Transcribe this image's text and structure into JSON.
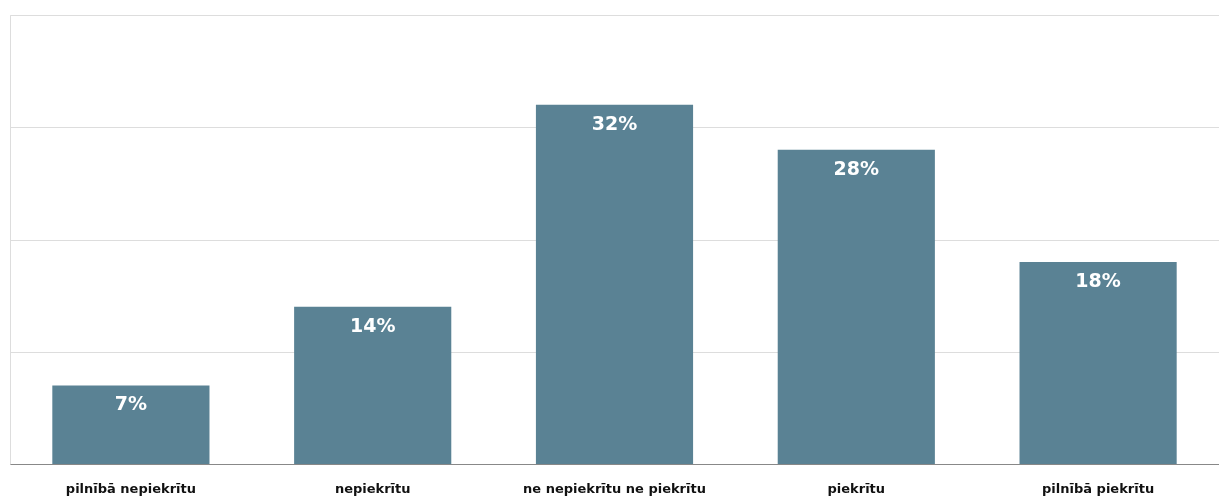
{
  "chart_data": {
    "type": "bar",
    "categories": [
      "pilnībā nepiekrītu",
      "nepiekrītu",
      "ne nepiekrītu ne piekrītu",
      "piekrītu",
      "pilnībā piekrītu"
    ],
    "values": [
      7,
      14,
      32,
      28,
      18
    ],
    "value_labels": [
      "7%",
      "14%",
      "32%",
      "28%",
      "18%"
    ],
    "color": "#5a8294",
    "ylim": [
      0,
      40
    ],
    "yticks": [
      {
        "value": 0,
        "label": null
      },
      {
        "value": 10,
        "label": null
      },
      {
        "value": 20,
        "label": null
      },
      {
        "value": 30,
        "label": null
      },
      {
        "value": 40,
        "label": null
      }
    ],
    "grid": "y",
    "tick_labels": "x"
  }
}
